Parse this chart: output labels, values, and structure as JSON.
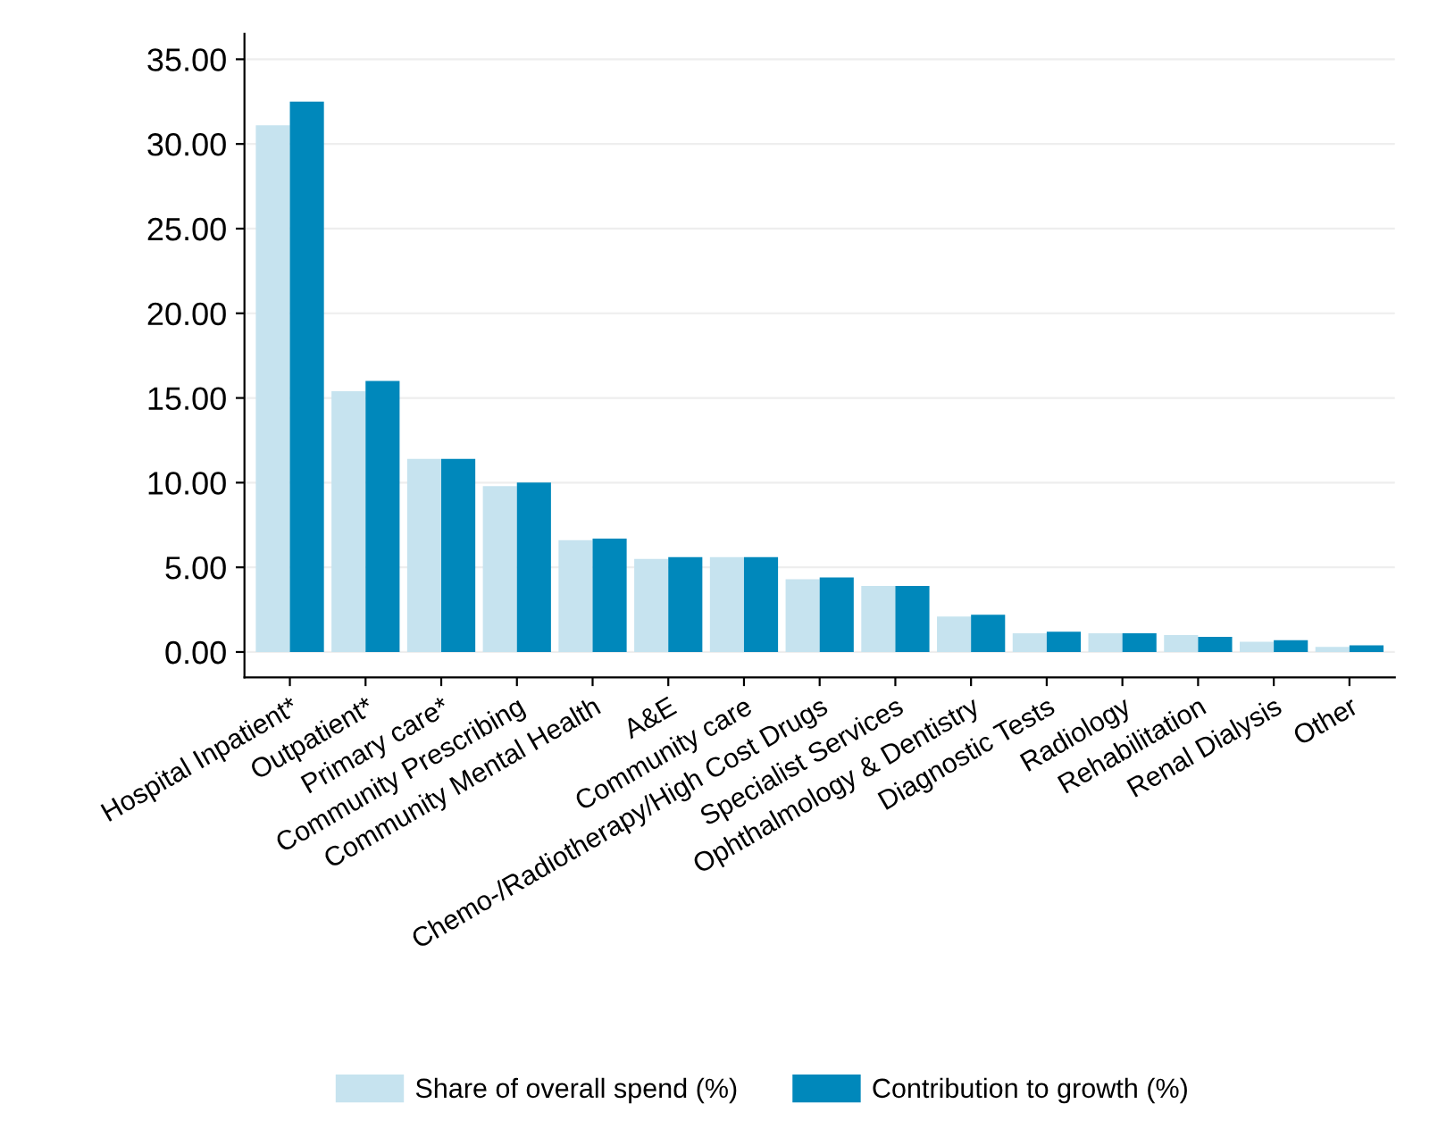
{
  "chart_data": {
    "type": "bar",
    "categories": [
      "Hospital Inpatient*",
      "Outpatient*",
      "Primary care*",
      "Community Prescribing",
      "Community Mental Health",
      "A&E",
      "Community care",
      "Chemo-/Radiotherapy/High Cost Drugs",
      "Specialist Services",
      "Ophthalmology & Dentistry",
      "Diagnostic Tests",
      "Radiology",
      "Rehabilitation",
      "Renal Dialysis",
      "Other"
    ],
    "series": [
      {
        "name": "Share of overall spend (%)",
        "color": "#c6e3ef",
        "values": [
          31.1,
          15.4,
          11.4,
          9.8,
          6.6,
          5.5,
          5.6,
          4.3,
          3.9,
          2.1,
          1.1,
          1.1,
          1.0,
          0.6,
          0.3
        ]
      },
      {
        "name": "Contribution to growth (%)",
        "color": "#0088bb",
        "values": [
          32.5,
          16.0,
          11.4,
          10.0,
          6.7,
          5.6,
          5.6,
          4.4,
          3.9,
          2.2,
          1.2,
          1.1,
          0.9,
          0.7,
          0.4
        ]
      }
    ],
    "ylim": [
      -1.5,
      36.5
    ],
    "yticks": [
      {
        "value": 0,
        "label": "0.00"
      },
      {
        "value": 5,
        "label": "5.00"
      },
      {
        "value": 10,
        "label": "10.00"
      },
      {
        "value": 15,
        "label": "15.00"
      },
      {
        "value": 20,
        "label": "20.00"
      },
      {
        "value": 25,
        "label": "25.00"
      },
      {
        "value": 30,
        "label": "30.00"
      },
      {
        "value": 35,
        "label": "35.00"
      }
    ],
    "grid": "y",
    "legend": "bottom"
  }
}
